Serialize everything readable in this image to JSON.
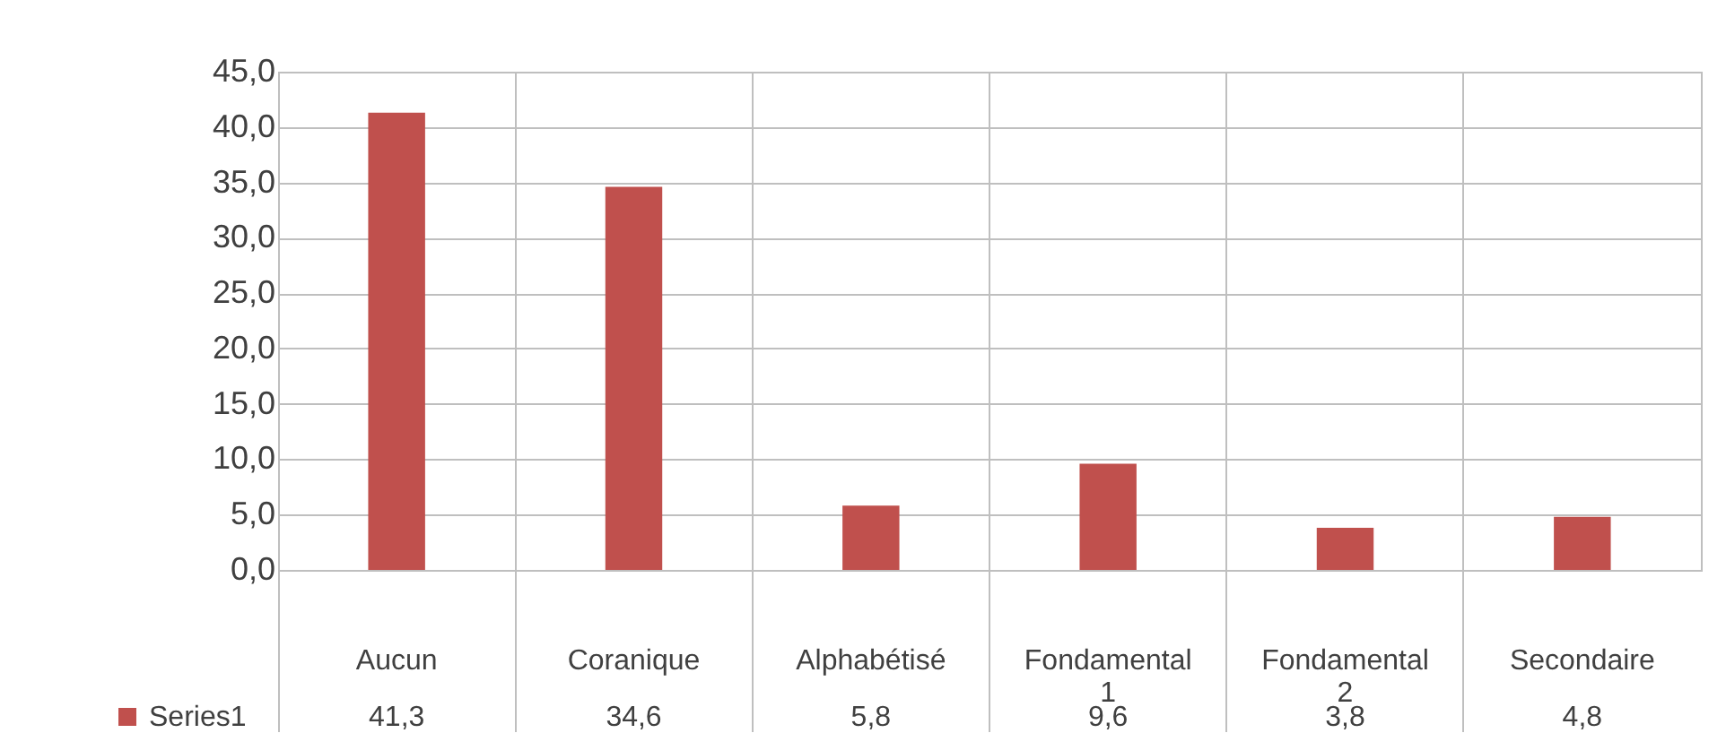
{
  "chart_data": {
    "type": "bar",
    "categories": [
      "Aucun",
      "Coranique",
      "Alphabétisé",
      "Fondamental 1",
      "Fondamental 2",
      "Secondaire"
    ],
    "series": [
      {
        "name": "Series1",
        "color": "#c0504d",
        "values": [
          41.3,
          34.6,
          5.8,
          9.6,
          3.8,
          4.8
        ],
        "value_labels": [
          "41,3",
          "34,6",
          "5,8",
          "9,6",
          "3,8",
          "4,8"
        ]
      }
    ],
    "ylim": [
      0,
      45
    ],
    "yticks": [
      {
        "value": 0,
        "label": "0,0"
      },
      {
        "value": 5,
        "label": "5,0"
      },
      {
        "value": 10,
        "label": "10,0"
      },
      {
        "value": 15,
        "label": "15,0"
      },
      {
        "value": 20,
        "label": "20,0"
      },
      {
        "value": 25,
        "label": "25,0"
      },
      {
        "value": 30,
        "label": "30,0"
      },
      {
        "value": 35,
        "label": "35,0"
      },
      {
        "value": 40,
        "label": "40,0"
      },
      {
        "value": 45,
        "label": "45,0"
      }
    ],
    "grid": true,
    "legend": "bottom left"
  }
}
